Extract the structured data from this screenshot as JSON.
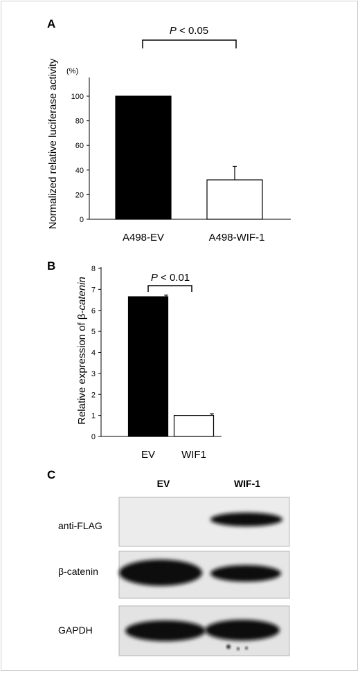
{
  "chart_data": [
    {
      "panel": "A",
      "type": "bar",
      "categories": [
        "A498-EV",
        "A498-WIF-1"
      ],
      "values": [
        100,
        32
      ],
      "errors": [
        0,
        11
      ],
      "bar_colors": [
        "#000000",
        "#ffffff"
      ],
      "ylabel": "Normalized  relative luciferase activity",
      "yunit": "(%)",
      "ylim": [
        0,
        100
      ],
      "yticks": [
        "0",
        "20",
        "40",
        "60",
        "80",
        "100"
      ],
      "ytick_values": [
        0,
        20,
        40,
        60,
        80,
        100
      ],
      "significance": {
        "prefix": "P",
        "text": " < 0.05"
      }
    },
    {
      "panel": "B",
      "type": "bar",
      "categories": [
        "EV",
        "WIF1"
      ],
      "values": [
        6.65,
        1.0
      ],
      "errors": [
        0.08,
        0.08
      ],
      "bar_colors": [
        "#000000",
        "#ffffff"
      ],
      "ylabel_prefix": "Relative expression of β-",
      "ylabel_italic": "catenin",
      "ylim": [
        0,
        8
      ],
      "yticks": [
        "0",
        "1",
        "2",
        "3",
        "4",
        "5",
        "6",
        "7",
        "8"
      ],
      "ytick_values": [
        0,
        1,
        2,
        3,
        4,
        5,
        6,
        7,
        8
      ],
      "significance": {
        "prefix": "P",
        "text": " < 0.01"
      }
    }
  ],
  "blot": {
    "panel": "C",
    "columns": [
      "EV",
      "WIF-1"
    ],
    "rows": [
      "anti-FLAG",
      "β-catenin",
      "GAPDH"
    ]
  }
}
